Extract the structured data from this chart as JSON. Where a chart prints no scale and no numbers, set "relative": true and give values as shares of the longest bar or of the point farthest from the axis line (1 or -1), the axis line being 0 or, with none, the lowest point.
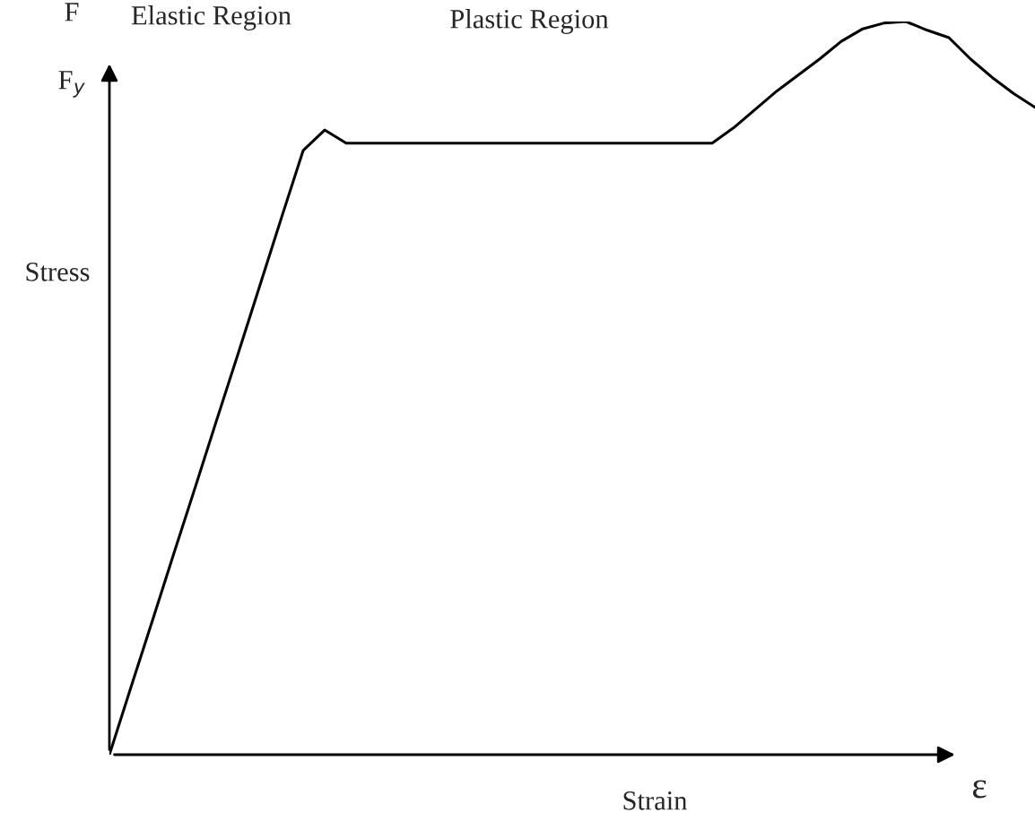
{
  "chart_data": {
    "type": "line",
    "relative": true,
    "xlabel": "Strain",
    "ylabel": "Stress",
    "categories": [
      null,
      null,
      null,
      null,
      null,
      null,
      null,
      null,
      null,
      null,
      null,
      null,
      null,
      null,
      null,
      null,
      null,
      null,
      null,
      null,
      null,
      null,
      null,
      null,
      null,
      null,
      null,
      null,
      null,
      null,
      null,
      null,
      null,
      null,
      null,
      null,
      null,
      null,
      null,
      null,
      null,
      null,
      null,
      null
    ],
    "series": [
      {
        "color": "#000000",
        "values": [
          0,
          0.092,
          0.183,
          0.275,
          0.366,
          0.458,
          0.549,
          0.641,
          0.733,
          0.824,
          0.852,
          0.834,
          0.834,
          0.834,
          0.834,
          0.834,
          0.834,
          0.834,
          0.834,
          0.834,
          0.834,
          0.834,
          0.834,
          0.834,
          0.834,
          0.834,
          0.834,
          0.834,
          0.834,
          0.855,
          0.88,
          0.905,
          0.927,
          0.949,
          0.973,
          0.99,
          0.998,
          1.0,
          0.988,
          0.978,
          0.949,
          0.924,
          0.902,
          0.883
        ]
      }
    ],
    "annotations": [
      "Elastic Region",
      "Plastic Region",
      "ε",
      "F",
      "F$_{y}$"
    ]
  }
}
